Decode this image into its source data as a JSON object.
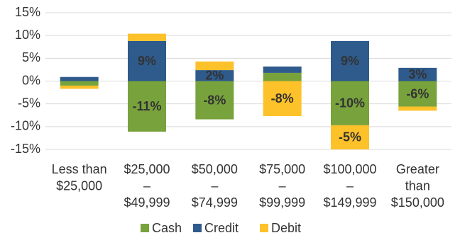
{
  "chart_data": {
    "type": "stacked-bar",
    "categories": [
      [
        "Less than",
        "$25,000"
      ],
      [
        "$25,000",
        "–",
        "$49,999"
      ],
      [
        "$50,000",
        "–",
        "$74,999"
      ],
      [
        "$75,000",
        "–",
        "$99,999"
      ],
      [
        "$100,000",
        "–",
        "$149,999"
      ],
      [
        "Greater",
        "than",
        "$150,000"
      ]
    ],
    "series": [
      {
        "name": "Cash",
        "color": "#78a23c",
        "values": [
          -1.0,
          -11.1,
          -8.4,
          1.8,
          -9.7,
          -5.6
        ],
        "value_labels": [
          null,
          "-11%",
          "-8%",
          null,
          "-10%",
          "-6%"
        ]
      },
      {
        "name": "Credit",
        "color": "#2e5a8c",
        "values": [
          0.9,
          8.8,
          2.4,
          1.4,
          8.8,
          2.9
        ],
        "value_labels": [
          null,
          "9%",
          "2%",
          null,
          "9%",
          "3%"
        ]
      },
      {
        "name": "Debit",
        "color": "#fdc12a",
        "values": [
          -0.7,
          1.6,
          1.9,
          -7.7,
          -5.3,
          -0.9
        ],
        "value_labels": [
          null,
          null,
          null,
          "-8%",
          "-5%",
          null
        ]
      }
    ],
    "ylim": [
      -15,
      15
    ],
    "yticks": [
      {
        "value": -15,
        "label": "-15%"
      },
      {
        "value": -10,
        "label": "-10%"
      },
      {
        "value": -5,
        "label": "-5%"
      },
      {
        "value": 0,
        "label": "0%"
      },
      {
        "value": 5,
        "label": "5%"
      },
      {
        "value": 10,
        "label": "10%"
      },
      {
        "value": 15,
        "label": "15%"
      }
    ],
    "grid": true,
    "legend": "bottom"
  }
}
